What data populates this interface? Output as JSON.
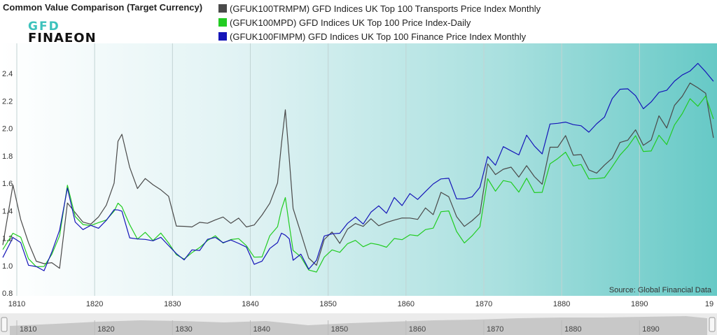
{
  "title": "Common Value Comparison (Target Currency)",
  "logo": {
    "top": "GFD",
    "bottom": "FINAEON"
  },
  "legend": [
    {
      "label": "(GFUK100TRMPM) GFD Indices UK Top 100 Transports Price Index Monthly",
      "color": "#4a4a4a"
    },
    {
      "label": "(GFUK100MPD) GFD Indices UK Top 100 Price Index-Daily",
      "color": "#22cc22"
    },
    {
      "label": "(GFUK100FIMPM) GFD Indices UK Top 100 Finance Price Index Monthly",
      "color": "#1515b8"
    }
  ],
  "source": "Source: Global Financial Data",
  "navigator": {
    "ticks": [
      "1810",
      "1820",
      "1830",
      "1840",
      "1850",
      "1860",
      "1870",
      "1880",
      "1890"
    ]
  },
  "chart_data": {
    "type": "line",
    "title": "Common Value Comparison (Target Currency)",
    "xlim": [
      1808.2,
      1899.6
    ],
    "ylim": [
      0.78,
      2.62
    ],
    "x_ticks": [
      "1810",
      "1820",
      "1830",
      "1840",
      "1850",
      "1860",
      "1870",
      "1880",
      "1890",
      "19"
    ],
    "y_ticks": [
      "0.8",
      "1.0",
      "1.2",
      "1.4",
      "1.6",
      "1.8",
      "2.0",
      "2.2",
      "2.4"
    ],
    "grid": "vertical",
    "series": [
      {
        "name": "(GFUK100TRMPM) GFD Indices UK Top 100 Transports Price Index Monthly",
        "color": "#4a4a4a",
        "x": [
          1808.2,
          1809.5,
          1810.5,
          1811.5,
          1812.5,
          1813.5,
          1814.5,
          1815.5,
          1816.5,
          1817.5,
          1818.5,
          1819.5,
          1820.5,
          1821.5,
          1822.5,
          1823.0,
          1823.5,
          1824.5,
          1825.5,
          1826.5,
          1827.5,
          1828.5,
          1829.5,
          1830.5,
          1831.5,
          1832.5,
          1833.5,
          1834.5,
          1835.5,
          1836.5,
          1837.5,
          1838.5,
          1839.5,
          1840.5,
          1841.5,
          1842.5,
          1843.5,
          1844.0,
          1844.5,
          1845.0,
          1845.5,
          1846.5,
          1847.5,
          1848.5,
          1849.5,
          1850.5,
          1851.5,
          1852.5,
          1853.5,
          1854.5,
          1855.5,
          1856.5,
          1857.5,
          1858.5,
          1859.5,
          1860.5,
          1861.5,
          1862.5,
          1863.5,
          1864.5,
          1865.5,
          1866.5,
          1867.5,
          1868.5,
          1869.5,
          1870.5,
          1871.5,
          1872.5,
          1873.5,
          1874.5,
          1875.5,
          1876.5,
          1877.5,
          1878.5,
          1879.5,
          1880.5,
          1881.5,
          1882.5,
          1883.5,
          1884.5,
          1885.5,
          1886.5,
          1887.5,
          1888.5,
          1889.5,
          1890.5,
          1891.5,
          1892.5,
          1893.5,
          1894.5,
          1895.5,
          1896.5,
          1897.5,
          1898.5,
          1899.5
        ],
        "values": [
          1.15,
          1.58,
          1.35,
          1.15,
          1.05,
          1.0,
          1.03,
          0.98,
          1.45,
          1.4,
          1.3,
          1.32,
          1.34,
          1.45,
          1.6,
          1.9,
          1.97,
          1.7,
          1.58,
          1.62,
          1.6,
          1.55,
          1.5,
          1.3,
          1.27,
          1.3,
          1.3,
          1.32,
          1.33,
          1.35,
          1.32,
          1.33,
          1.3,
          1.28,
          1.38,
          1.45,
          1.6,
          1.9,
          2.12,
          1.8,
          1.4,
          1.25,
          1.05,
          1.0,
          1.2,
          1.23,
          1.18,
          1.25,
          1.32,
          1.28,
          1.34,
          1.3,
          1.3,
          1.35,
          1.33,
          1.36,
          1.33,
          1.42,
          1.38,
          1.52,
          1.52,
          1.34,
          1.3,
          1.32,
          1.38,
          1.75,
          1.65,
          1.72,
          1.7,
          1.66,
          1.72,
          1.65,
          1.6,
          1.85,
          1.88,
          1.93,
          1.82,
          1.8,
          1.7,
          1.68,
          1.72,
          1.8,
          1.88,
          1.93,
          1.98,
          1.88,
          1.92,
          2.08,
          2.02,
          2.15,
          2.25,
          2.32,
          2.3,
          2.26,
          1.92
        ]
      },
      {
        "name": "(GFUK100MPD) GFD Indices UK Top 100 Price Index-Daily",
        "color": "#22cc22",
        "x": [
          1808.2,
          1809.5,
          1810.5,
          1811.5,
          1812.5,
          1813.5,
          1814.5,
          1815.5,
          1816.5,
          1817.5,
          1818.5,
          1819.5,
          1820.5,
          1821.5,
          1822.5,
          1823.0,
          1823.5,
          1824.5,
          1825.5,
          1826.5,
          1827.5,
          1828.5,
          1829.5,
          1830.5,
          1831.5,
          1832.5,
          1833.5,
          1834.5,
          1835.5,
          1836.5,
          1837.5,
          1838.5,
          1839.5,
          1840.5,
          1841.5,
          1842.5,
          1843.5,
          1844.0,
          1844.5,
          1845.0,
          1845.5,
          1846.5,
          1847.5,
          1848.5,
          1849.5,
          1850.5,
          1851.5,
          1852.5,
          1853.5,
          1854.5,
          1855.5,
          1856.5,
          1857.5,
          1858.5,
          1859.5,
          1860.5,
          1861.5,
          1862.5,
          1863.5,
          1864.5,
          1865.5,
          1866.5,
          1867.5,
          1868.5,
          1869.5,
          1870.5,
          1871.5,
          1872.5,
          1873.5,
          1874.5,
          1875.5,
          1876.5,
          1877.5,
          1878.5,
          1879.5,
          1880.5,
          1881.5,
          1882.5,
          1883.5,
          1884.5,
          1885.5,
          1886.5,
          1887.5,
          1888.5,
          1889.5,
          1890.5,
          1891.5,
          1892.5,
          1893.5,
          1894.5,
          1895.5,
          1896.5,
          1897.5,
          1898.5,
          1899.5
        ],
        "values": [
          1.1,
          1.25,
          1.2,
          1.05,
          1.0,
          0.98,
          1.1,
          1.2,
          1.6,
          1.35,
          1.3,
          1.3,
          1.3,
          1.35,
          1.38,
          1.47,
          1.42,
          1.3,
          1.2,
          1.23,
          1.2,
          1.22,
          1.18,
          1.07,
          1.05,
          1.1,
          1.12,
          1.2,
          1.2,
          1.18,
          1.18,
          1.2,
          1.15,
          1.05,
          1.08,
          1.2,
          1.3,
          1.4,
          1.5,
          1.3,
          1.1,
          1.08,
          0.95,
          0.97,
          1.05,
          1.12,
          1.1,
          1.15,
          1.2,
          1.12,
          1.18,
          1.14,
          1.14,
          1.2,
          1.18,
          1.24,
          1.2,
          1.28,
          1.26,
          1.4,
          1.4,
          1.24,
          1.18,
          1.2,
          1.3,
          1.62,
          1.55,
          1.62,
          1.6,
          1.55,
          1.62,
          1.55,
          1.52,
          1.75,
          1.78,
          1.82,
          1.74,
          1.72,
          1.65,
          1.62,
          1.65,
          1.72,
          1.8,
          1.88,
          1.93,
          1.85,
          1.82,
          1.96,
          1.88,
          2.02,
          2.12,
          2.2,
          2.18,
          2.22,
          2.08
        ]
      },
      {
        "name": "(GFUK100FIMPM) GFD Indices UK Top 100 Finance Price Index Monthly",
        "color": "#1515b8",
        "x": [
          1808.2,
          1809.5,
          1810.5,
          1811.5,
          1812.5,
          1813.5,
          1814.5,
          1815.5,
          1816.5,
          1817.5,
          1818.5,
          1819.5,
          1820.5,
          1821.5,
          1822.5,
          1823.0,
          1823.5,
          1824.5,
          1825.5,
          1826.5,
          1827.5,
          1828.5,
          1829.5,
          1830.5,
          1831.5,
          1832.5,
          1833.5,
          1834.5,
          1835.5,
          1836.5,
          1837.5,
          1838.5,
          1839.5,
          1840.5,
          1841.5,
          1842.5,
          1843.5,
          1844.0,
          1844.5,
          1845.0,
          1845.5,
          1846.5,
          1847.5,
          1848.5,
          1849.5,
          1850.5,
          1851.5,
          1852.5,
          1853.5,
          1854.5,
          1855.5,
          1856.5,
          1857.5,
          1858.5,
          1859.5,
          1860.5,
          1861.5,
          1862.5,
          1863.5,
          1864.5,
          1865.5,
          1866.5,
          1867.5,
          1868.5,
          1869.5,
          1870.5,
          1871.5,
          1872.5,
          1873.5,
          1874.5,
          1875.5,
          1876.5,
          1877.5,
          1878.5,
          1879.5,
          1880.5,
          1881.5,
          1882.5,
          1883.5,
          1884.5,
          1885.5,
          1886.5,
          1887.5,
          1888.5,
          1889.5,
          1890.5,
          1891.5,
          1892.5,
          1893.5,
          1894.5,
          1895.5,
          1896.5,
          1897.5,
          1898.5,
          1899.5
        ],
        "values": [
          1.05,
          1.22,
          1.15,
          1.02,
          0.98,
          0.97,
          1.1,
          1.25,
          1.58,
          1.3,
          1.28,
          1.28,
          1.28,
          1.33,
          1.4,
          1.42,
          1.38,
          1.22,
          1.18,
          1.2,
          1.18,
          1.2,
          1.16,
          1.07,
          1.06,
          1.1,
          1.12,
          1.19,
          1.2,
          1.18,
          1.17,
          1.18,
          1.12,
          1.02,
          1.03,
          1.12,
          1.18,
          1.22,
          1.24,
          1.18,
          1.05,
          1.08,
          0.97,
          1.05,
          1.2,
          1.25,
          1.22,
          1.32,
          1.35,
          1.3,
          1.4,
          1.42,
          1.4,
          1.48,
          1.45,
          1.52,
          1.48,
          1.55,
          1.58,
          1.65,
          1.62,
          1.5,
          1.48,
          1.5,
          1.58,
          1.78,
          1.75,
          1.85,
          1.85,
          1.8,
          1.95,
          1.88,
          1.8,
          2.05,
          2.02,
          2.06,
          2.02,
          2.02,
          1.98,
          2.02,
          2.1,
          2.2,
          2.3,
          2.28,
          2.24,
          2.15,
          2.18,
          2.28,
          2.26,
          2.36,
          2.38,
          2.42,
          2.48,
          2.4,
          2.36
        ]
      }
    ]
  }
}
